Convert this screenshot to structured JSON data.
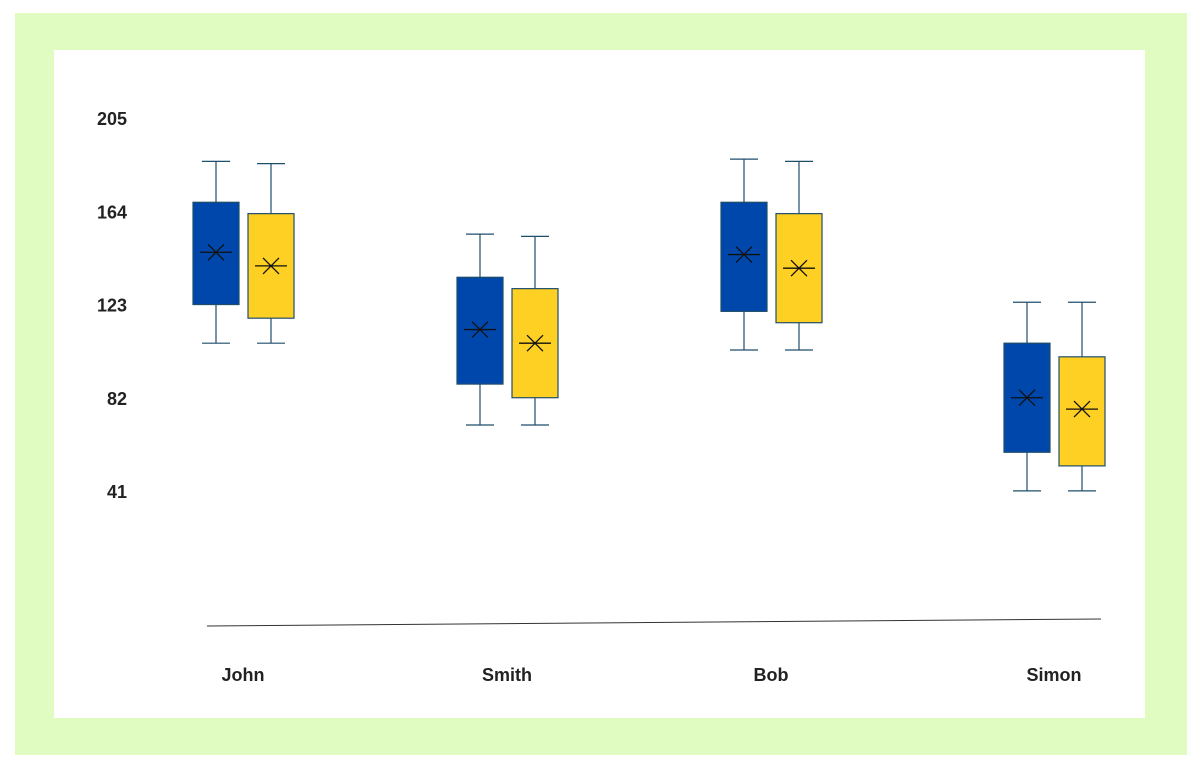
{
  "chart_data": {
    "type": "box",
    "categories": [
      "John",
      "Smith",
      "Bob",
      "Simon"
    ],
    "series": [
      {
        "color": "#0047ab",
        "min": [
          107,
          71,
          104,
          42
        ],
        "q1": [
          124,
          89,
          121,
          59
        ],
        "mean": [
          147,
          113,
          146,
          83
        ],
        "q3": [
          169,
          136,
          169,
          107
        ],
        "max": [
          187,
          155,
          188,
          125
        ]
      },
      {
        "color": "#fdd023",
        "min": [
          107,
          71,
          104,
          42
        ],
        "q1": [
          118,
          83,
          116,
          53
        ],
        "mean": [
          141,
          107,
          140,
          78
        ],
        "q3": [
          164,
          131,
          164,
          101
        ],
        "max": [
          186,
          154,
          187,
          125
        ]
      }
    ],
    "ylim": [
      -17,
      214
    ],
    "yticks": [
      205,
      164,
      123,
      82,
      41
    ]
  }
}
